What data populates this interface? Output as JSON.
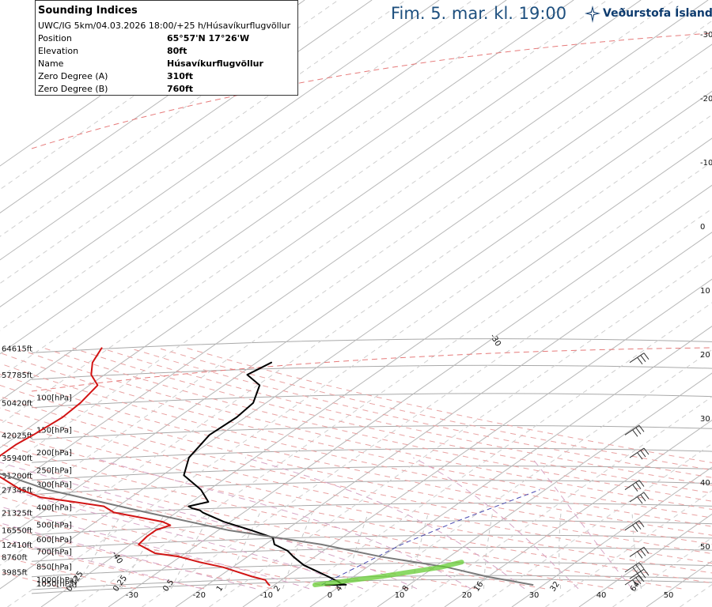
{
  "header": {
    "title": "Fim. 5. mar. kl. 19:00",
    "brand": "Veðurstofa Íslands",
    "brand_color": "#0d3b6e",
    "title_color": "#1d4f7e"
  },
  "indices": {
    "title": "Sounding Indices",
    "subtitle": "UWC/IG 5km/04.03.2026 18:00/+25 h/Húsavíkurflugvöllur",
    "rows": [
      {
        "label": "Position",
        "value": "65°57'N 17°26'W"
      },
      {
        "label": "Elevation",
        "value": "80ft"
      },
      {
        "label": "Name",
        "value": "Húsavíkurflugvöllur"
      },
      {
        "label": "Zero Degree (A)",
        "value": "310ft"
      },
      {
        "label": "Zero Degree (B)",
        "value": "760ft"
      }
    ]
  },
  "chart_data": {
    "type": "line",
    "subtype": "skew-T log-P diagram",
    "pressure_levels": [
      {
        "p": 1050,
        "label": "1050[hPa]",
        "alt": ""
      },
      {
        "p": 1000,
        "label": "1000[hPa]",
        "alt": ""
      },
      {
        "p": 850,
        "label": "850[hPa]",
        "alt": "3985ft"
      },
      {
        "p": 700,
        "label": "700[hPa]",
        "alt": "8760ft"
      },
      {
        "p": 600,
        "label": "600[hPa]",
        "alt": "12410ft"
      },
      {
        "p": 500,
        "label": "500[hPa]",
        "alt": "16550ft"
      },
      {
        "p": 400,
        "label": "400[hPa]",
        "alt": "21325ft"
      },
      {
        "p": 300,
        "label": "300[hPa]",
        "alt": "27345ft"
      },
      {
        "p": 250,
        "label": "250[hPa]",
        "alt": "31200ft"
      },
      {
        "p": 200,
        "label": "200[hPa]",
        "alt": "35940ft"
      },
      {
        "p": 150,
        "label": "150[hPa]",
        "alt": "42025ft"
      },
      {
        "p": 100,
        "label": "100[hPa]",
        "alt": "50420ft"
      },
      {
        "p": 70,
        "label": "",
        "alt": "57785ft"
      },
      {
        "p": 50,
        "label": "",
        "alt": "64615ft"
      }
    ],
    "temperature_labels": [
      "-30",
      "-20",
      "-10",
      "0",
      "10",
      "20",
      "30",
      "40",
      "50"
    ],
    "isotherm_labels": [
      "-40",
      "-30",
      "-20",
      "-10",
      "0",
      "10",
      "20",
      "30"
    ],
    "mixing_ratio_labels": [
      "0.125",
      "0.25",
      "0.5",
      "1",
      "2",
      "4",
      "8",
      "16",
      "32",
      "64"
    ],
    "right_axis_labels": [
      "-30",
      "-20",
      "-10",
      "0",
      "10",
      "20",
      "30",
      "40",
      "50"
    ],
    "series": [
      {
        "color": "#000000",
        "points": [
          [
            1003,
            -2.4
          ],
          [
            998,
            0.6
          ],
          [
            990,
            -0.2
          ],
          [
            960,
            -1.2
          ],
          [
            900,
            -3.8
          ],
          [
            850,
            -6.2
          ],
          [
            780,
            -9.8
          ],
          [
            700,
            -13.2
          ],
          [
            650,
            -15.3
          ],
          [
            600,
            -18.6
          ],
          [
            550,
            -20.3
          ],
          [
            500,
            -25.2
          ],
          [
            450,
            -31.0
          ],
          [
            400,
            -36.1
          ],
          [
            390,
            -36.9
          ],
          [
            380,
            -38.5
          ],
          [
            370,
            -39.5
          ],
          [
            350,
            -37.5
          ],
          [
            300,
            -41.2
          ],
          [
            250,
            -46.8
          ],
          [
            200,
            -49.8
          ],
          [
            150,
            -51.6
          ],
          [
            120,
            -51.3
          ],
          [
            100,
            -51.9
          ],
          [
            80,
            -54.7
          ],
          [
            70,
            -58.8
          ],
          [
            65,
            -58.3
          ],
          [
            60,
            -57.8
          ]
        ]
      },
      {
        "color": "#d21414",
        "points": [
          [
            1003,
            -10.7
          ],
          [
            990,
            -11.1
          ],
          [
            940,
            -12.4
          ],
          [
            900,
            -15.1
          ],
          [
            850,
            -18.2
          ],
          [
            800,
            -21.4
          ],
          [
            750,
            -26.0
          ],
          [
            700,
            -30.2
          ],
          [
            670,
            -34.5
          ],
          [
            600,
            -38.8
          ],
          [
            540,
            -39.3
          ],
          [
            500,
            -39.3
          ],
          [
            470,
            -38.2
          ],
          [
            450,
            -40.1
          ],
          [
            430,
            -43.6
          ],
          [
            400,
            -49.3
          ],
          [
            370,
            -52.1
          ],
          [
            350,
            -57.5
          ],
          [
            330,
            -63.5
          ],
          [
            300,
            -68.0
          ],
          [
            250,
            -74.5
          ],
          [
            200,
            -78.3
          ],
          [
            170,
            -78.3
          ],
          [
            150,
            -77.8
          ],
          [
            120,
            -77.2
          ],
          [
            100,
            -77.6
          ],
          [
            80,
            -78.8
          ],
          [
            70,
            -82.0
          ],
          [
            60,
            -84.4
          ],
          [
            50,
            -86.1
          ]
        ]
      },
      {
        "color": "#7a7a7a",
        "points": [
          [
            1000,
            28.4
          ],
          [
            900,
            19.8
          ],
          [
            800,
            11.9
          ],
          [
            700,
            -0.2
          ],
          [
            600,
            -11.6
          ],
          [
            500,
            -28.6
          ],
          [
            400,
            -44.4
          ],
          [
            300,
            -64.0
          ],
          [
            250,
            -73.3
          ],
          [
            200,
            -86.4
          ],
          [
            160,
            -98.8
          ],
          [
            150,
            -98.6
          ],
          [
            100,
            -107.5
          ],
          [
            70,
            -113.8
          ],
          [
            60,
            -116.2
          ]
        ]
      },
      {
        "color": "#66cc33",
        "points": [
          [
            1000,
            -4.0
          ],
          [
            900,
            4.0
          ],
          [
            800,
            11.0
          ],
          [
            750,
            13.0
          ]
        ]
      }
    ],
    "wind_barb_pressures": [
      1000,
      925,
      850,
      700,
      500,
      350,
      300,
      200,
      150,
      60
    ],
    "reference_line": {
      "color": "#4a4ab0",
      "points": [
        [
          1000,
          -3.0
        ],
        [
          600,
          0.3
        ],
        [
          450,
          3.5
        ],
        [
          300,
          9.2
        ]
      ]
    }
  }
}
